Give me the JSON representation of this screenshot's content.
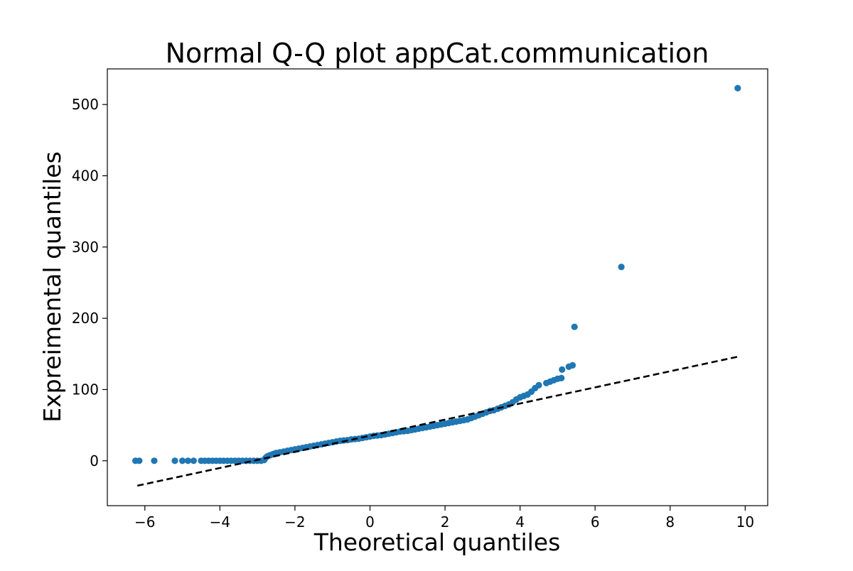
{
  "chart_data": {
    "type": "scatter",
    "title": "Normal Q-Q plot appCat.communication",
    "xlabel": "Theoretical quantiles",
    "ylabel": "Expreimental quantiles",
    "xlim": [
      -7.0,
      10.6
    ],
    "ylim": [
      -63,
      550
    ],
    "xticks": [
      -6,
      -4,
      -2,
      0,
      2,
      4,
      6,
      8,
      10
    ],
    "xtick_labels": [
      "−6",
      "−4",
      "−2",
      "0",
      "2",
      "4",
      "6",
      "8",
      "10"
    ],
    "yticks": [
      0,
      100,
      200,
      300,
      400,
      500
    ],
    "ytick_labels": [
      "0",
      "100",
      "200",
      "300",
      "400",
      "500"
    ],
    "grid": false,
    "colors": {
      "points": "#1f77b4",
      "fit_line": "#000000"
    },
    "fit_line": {
      "style": "dashed",
      "x": [
        -6.2,
        9.8
      ],
      "y": [
        -35,
        146
      ]
    },
    "points": [
      [
        -6.25,
        0
      ],
      [
        -6.15,
        0
      ],
      [
        -5.75,
        0
      ],
      [
        -5.2,
        0
      ],
      [
        -5.0,
        0
      ],
      [
        -4.85,
        0
      ],
      [
        -4.7,
        0
      ],
      [
        -4.5,
        0
      ],
      [
        -4.4,
        0
      ],
      [
        -4.3,
        0
      ],
      [
        -4.2,
        0
      ],
      [
        -4.1,
        0
      ],
      [
        -4.0,
        0
      ],
      [
        -3.9,
        0
      ],
      [
        -3.8,
        0
      ],
      [
        -3.7,
        0
      ],
      [
        -3.6,
        0
      ],
      [
        -3.5,
        0
      ],
      [
        -3.4,
        0
      ],
      [
        -3.3,
        0
      ],
      [
        -3.2,
        0
      ],
      [
        -3.1,
        0
      ],
      [
        -3.0,
        0
      ],
      [
        -2.9,
        0
      ],
      [
        -2.82,
        1
      ],
      [
        -2.78,
        4
      ],
      [
        -2.74,
        6
      ],
      [
        -2.7,
        7
      ],
      [
        -2.65,
        8
      ],
      [
        -2.6,
        9
      ],
      [
        -2.55,
        10
      ],
      [
        -2.5,
        11
      ],
      [
        -2.4,
        12
      ],
      [
        -2.3,
        13
      ],
      [
        -2.2,
        14
      ],
      [
        -2.1,
        15
      ],
      [
        -2.0,
        16
      ],
      [
        -1.9,
        17
      ],
      [
        -1.8,
        18
      ],
      [
        -1.7,
        19
      ],
      [
        -1.6,
        20
      ],
      [
        -1.5,
        21
      ],
      [
        -1.4,
        22
      ],
      [
        -1.3,
        23
      ],
      [
        -1.2,
        24
      ],
      [
        -1.1,
        25
      ],
      [
        -1.0,
        26
      ],
      [
        -0.9,
        27
      ],
      [
        -0.8,
        28
      ],
      [
        -0.7,
        28.5
      ],
      [
        -0.6,
        29
      ],
      [
        -0.5,
        30
      ],
      [
        -0.4,
        30.5
      ],
      [
        -0.3,
        31
      ],
      [
        -0.2,
        32
      ],
      [
        -0.1,
        33
      ],
      [
        0.0,
        34
      ],
      [
        0.1,
        35
      ],
      [
        0.2,
        35.5
      ],
      [
        0.3,
        36
      ],
      [
        0.4,
        37
      ],
      [
        0.5,
        38
      ],
      [
        0.6,
        39
      ],
      [
        0.7,
        40
      ],
      [
        0.8,
        41
      ],
      [
        0.9,
        41.5
      ],
      [
        1.0,
        42
      ],
      [
        1.1,
        43
      ],
      [
        1.2,
        44
      ],
      [
        1.3,
        45
      ],
      [
        1.4,
        46
      ],
      [
        1.5,
        47
      ],
      [
        1.6,
        48
      ],
      [
        1.7,
        49
      ],
      [
        1.8,
        50
      ],
      [
        1.9,
        51
      ],
      [
        2.0,
        52
      ],
      [
        2.1,
        53
      ],
      [
        2.2,
        54
      ],
      [
        2.3,
        55
      ],
      [
        2.4,
        56
      ],
      [
        2.5,
        57
      ],
      [
        2.6,
        58
      ],
      [
        2.7,
        60
      ],
      [
        2.8,
        62
      ],
      [
        2.9,
        64
      ],
      [
        3.0,
        66
      ],
      [
        3.1,
        68
      ],
      [
        3.2,
        70
      ],
      [
        3.3,
        71
      ],
      [
        3.4,
        73
      ],
      [
        3.5,
        75
      ],
      [
        3.6,
        77
      ],
      [
        3.7,
        79
      ],
      [
        3.8,
        82
      ],
      [
        3.9,
        86
      ],
      [
        4.0,
        89
      ],
      [
        4.1,
        91
      ],
      [
        4.2,
        93
      ],
      [
        4.3,
        97
      ],
      [
        4.4,
        102
      ],
      [
        4.5,
        106
      ],
      [
        4.7,
        109
      ],
      [
        4.8,
        111
      ],
      [
        4.9,
        113
      ],
      [
        5.0,
        115
      ],
      [
        5.1,
        116
      ],
      [
        5.12,
        128
      ],
      [
        5.3,
        132
      ],
      [
        5.4,
        134
      ],
      [
        5.45,
        188
      ],
      [
        6.7,
        272
      ],
      [
        9.8,
        523
      ]
    ]
  }
}
